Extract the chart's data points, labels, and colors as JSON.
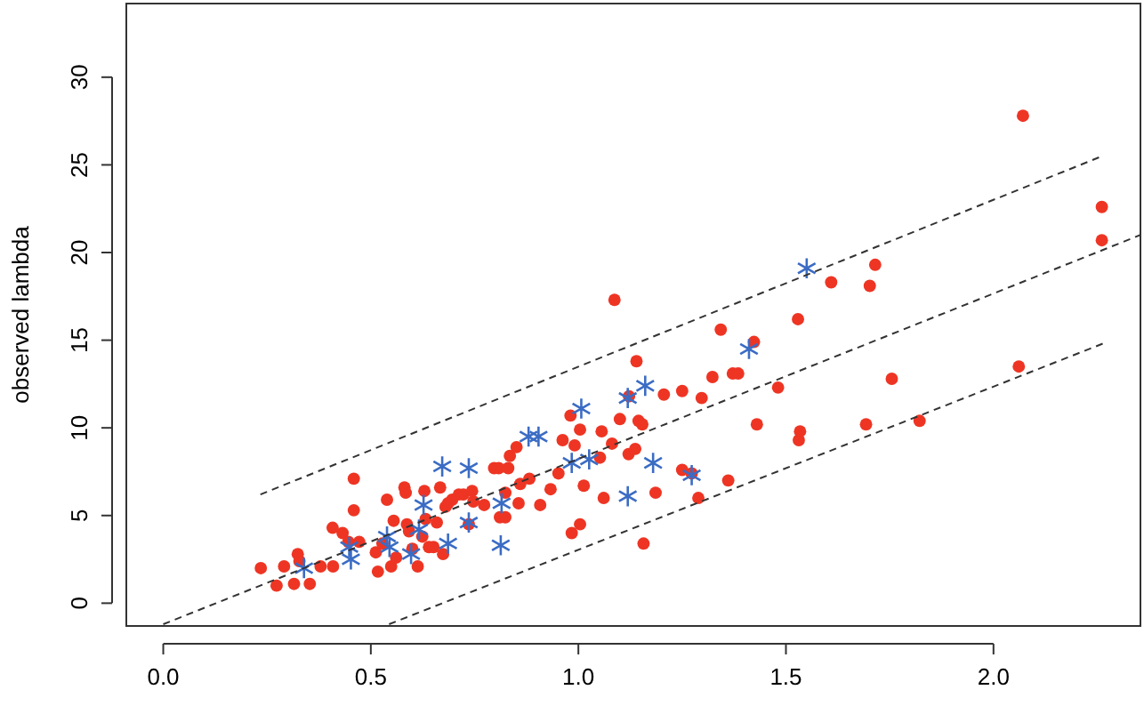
{
  "chart_data": {
    "type": "scatter",
    "ylabel": "observed lambda",
    "xlim": [
      -0.089,
      2.354
    ],
    "ylim": [
      -1.3,
      34.2
    ],
    "xticks": [
      {
        "value": 0,
        "label": "0.0"
      },
      {
        "value": 0.5,
        "label": "0.5"
      },
      {
        "value": 1,
        "label": "1.0"
      },
      {
        "value": 1.5,
        "label": "1.5"
      },
      {
        "value": 2,
        "label": "2.0"
      }
    ],
    "yticks": [
      0,
      5,
      10,
      15,
      20,
      25,
      30
    ],
    "grid": false,
    "series": [
      {
        "marker": "circle",
        "color": "#ee3524",
        "x": [
          0.235,
          0.273,
          0.291,
          0.315,
          0.324,
          0.328,
          0.353,
          0.379,
          0.408,
          0.409,
          0.432,
          0.446,
          0.459,
          0.459,
          0.472,
          0.512,
          0.517,
          0.528,
          0.539,
          0.549,
          0.555,
          0.561,
          0.581,
          0.584,
          0.587,
          0.592,
          0.6,
          0.613,
          0.624,
          0.629,
          0.632,
          0.64,
          0.651,
          0.659,
          0.667,
          0.674,
          0.68,
          0.686,
          0.696,
          0.712,
          0.723,
          0.736,
          0.744,
          0.747,
          0.773,
          0.797,
          0.808,
          0.811,
          0.824,
          0.831,
          0.824,
          0.835,
          0.851,
          0.856,
          0.86,
          0.882,
          0.908,
          0.933,
          0.952,
          0.962,
          0.981,
          0.984,
          0.991,
          1.004,
          1.004,
          1.013,
          1.052,
          1.056,
          1.061,
          1.081,
          1.087,
          1.1,
          1.121,
          1.122,
          1.137,
          1.14,
          1.145,
          1.154,
          1.157,
          1.186,
          1.206,
          1.25,
          1.25,
          1.273,
          1.289,
          1.297,
          1.323,
          1.343,
          1.361,
          1.372,
          1.385,
          1.423,
          1.43,
          1.481,
          1.529,
          1.531,
          1.534,
          1.609,
          1.693,
          1.702,
          1.715,
          1.755,
          1.822,
          2.061,
          2.071,
          2.261,
          2.261
        ],
        "values": [
          2.0,
          1.0,
          2.1,
          1.1,
          2.8,
          2.4,
          1.1,
          2.1,
          4.3,
          2.1,
          4.0,
          3.5,
          7.1,
          5.3,
          3.5,
          2.9,
          1.8,
          3.4,
          5.9,
          2.1,
          4.7,
          2.6,
          6.6,
          6.3,
          4.5,
          4.1,
          3.1,
          2.1,
          3.8,
          6.4,
          4.8,
          3.2,
          3.2,
          4.6,
          6.6,
          2.8,
          5.5,
          5.7,
          5.9,
          6.2,
          6.2,
          4.5,
          6.4,
          5.8,
          5.6,
          7.7,
          7.7,
          4.9,
          4.9,
          7.7,
          6.3,
          8.4,
          8.9,
          5.7,
          6.8,
          7.1,
          5.6,
          6.5,
          7.4,
          9.3,
          10.7,
          4.0,
          9.0,
          9.9,
          4.5,
          6.7,
          8.3,
          9.8,
          6.0,
          9.1,
          17.3,
          10.5,
          8.5,
          11.8,
          8.8,
          13.8,
          10.4,
          10.2,
          3.4,
          6.3,
          11.9,
          12.1,
          7.6,
          7.4,
          6.0,
          11.7,
          12.9,
          15.6,
          7.0,
          13.1,
          13.1,
          14.9,
          10.2,
          12.3,
          16.2,
          9.3,
          9.8,
          18.3,
          10.2,
          18.1,
          19.3,
          12.8,
          10.4,
          13.5,
          27.8,
          22.6,
          20.7
        ]
      },
      {
        "marker": "cross",
        "color": "#3b6cc4",
        "x": [
          0.339,
          0.448,
          0.452,
          0.539,
          0.545,
          0.597,
          0.616,
          0.627,
          0.672,
          0.686,
          0.736,
          0.736,
          0.813,
          0.815,
          0.88,
          0.904,
          0.984,
          1.007,
          1.026,
          1.119,
          1.119,
          1.161,
          1.18,
          1.273,
          1.411,
          1.55
        ],
        "values": [
          2.0,
          3.2,
          2.5,
          3.8,
          3.2,
          2.8,
          4.2,
          5.6,
          7.8,
          3.4,
          7.7,
          4.6,
          3.3,
          5.7,
          9.5,
          9.5,
          8.0,
          11.1,
          8.2,
          11.7,
          6.1,
          12.4,
          8.0,
          7.3,
          14.5,
          19.1
        ]
      },
      {
        "type": "line",
        "line_style": "dashed",
        "color": "#333333",
        "x": [
          0.234,
          2.262
        ],
        "values": [
          6.2,
          25.5
        ]
      },
      {
        "type": "line",
        "line_style": "dashed",
        "color": "#333333",
        "x": [
          0,
          2.354
        ],
        "values": [
          -1.2,
          21.0
        ]
      },
      {
        "type": "line",
        "line_style": "dashed",
        "color": "#333333",
        "x": [
          0.544,
          2.263
        ],
        "values": [
          -1.2,
          14.8
        ]
      }
    ]
  }
}
